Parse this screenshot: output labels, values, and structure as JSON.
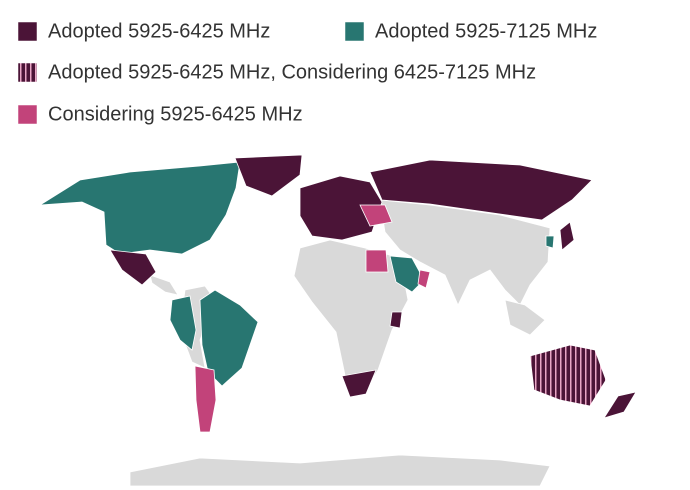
{
  "legend": [
    {
      "label": "Adopted 5925-6425 MHz",
      "color": "#4b1437"
    },
    {
      "label": "Adopted 5925-7125 MHz",
      "color": "#287671"
    },
    {
      "label": "Adopted 5925-6425 MHz, Considering 6425-7125 MHz",
      "color": "#4b1437",
      "pattern": "stripes"
    },
    {
      "label": "Considering 5925-6425 MHz",
      "color": "#c2437a"
    }
  ]
}
